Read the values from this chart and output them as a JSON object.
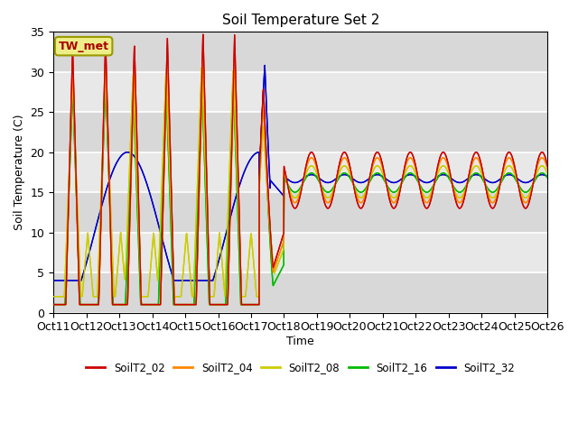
{
  "title": "Soil Temperature Set 2",
  "xlabel": "Time",
  "ylabel": "Soil Temperature (C)",
  "ylim": [
    0,
    35
  ],
  "xlim": [
    0,
    360
  ],
  "background_color": "#ffffff",
  "plot_bg_color": "#e5e5e5",
  "colors": {
    "SoilT2_02": "#cc0000",
    "SoilT2_04": "#ff8800",
    "SoilT2_08": "#cccc00",
    "SoilT2_16": "#00bb00",
    "SoilT2_32": "#0000cc"
  },
  "xtick_labels": [
    "Oct 11",
    "Oct 12",
    "Oct 13",
    "Oct 14",
    "Oct 15",
    "Oct 16",
    "Oct 17",
    "Oct 18",
    "Oct 19",
    "Oct 20",
    "Oct 21",
    "Oct 22",
    "Oct 23",
    "Oct 24",
    "Oct 25",
    "Oct 26"
  ],
  "xtick_positions": [
    0,
    24,
    48,
    72,
    96,
    120,
    144,
    168,
    192,
    216,
    240,
    264,
    288,
    312,
    336,
    360
  ],
  "annotation_text": "TW_met",
  "annotation_box_color": "#eeee88",
  "annotation_text_color": "#aa0000",
  "annotation_border_color": "#999900"
}
